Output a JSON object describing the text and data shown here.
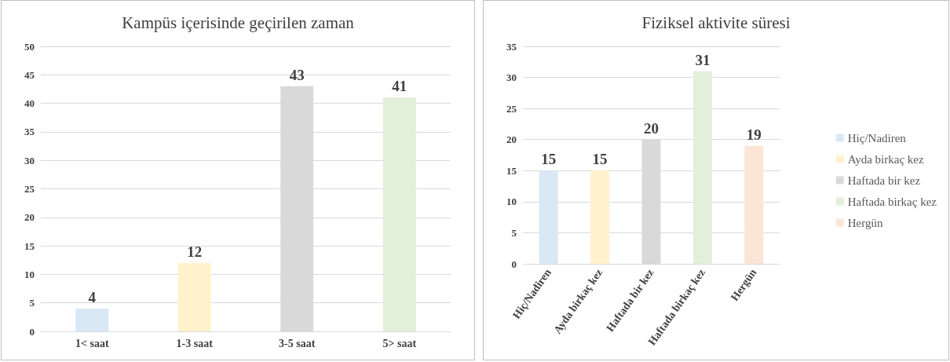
{
  "chart_data": [
    {
      "type": "bar",
      "title": "Kampüs içerisinde geçirilen zaman",
      "categories": [
        "1< saat",
        "1-3 saat",
        "3-5 saat",
        "5> saat"
      ],
      "values": [
        4,
        12,
        43,
        41
      ],
      "colors": [
        "#dae8f5",
        "#fff2cc",
        "#d9d9d9",
        "#e2efda"
      ],
      "ylim": [
        0,
        50
      ],
      "yticks": [
        0,
        5,
        10,
        15,
        20,
        25,
        30,
        35,
        40,
        45,
        50
      ],
      "grid": "y",
      "data_labels": true
    },
    {
      "type": "bar",
      "title": "Fiziksel aktivite süresi",
      "categories": [
        "Hiç/Nadiren",
        "Ayda birkaç kez",
        "Haftada bir kez",
        "Haftada birkaç kez",
        "Hergün"
      ],
      "series": [
        {
          "name": "Hiç/Nadiren",
          "color": "#dae8f5",
          "values": [
            15,
            null,
            null,
            null,
            null
          ]
        },
        {
          "name": "Ayda birkaç kez",
          "color": "#fff2cc",
          "values": [
            null,
            15,
            null,
            null,
            null
          ]
        },
        {
          "name": "Haftada bir kez",
          "color": "#d9d9d9",
          "values": [
            null,
            null,
            20,
            null,
            null
          ]
        },
        {
          "name": "Haftada birkaç kez",
          "color": "#e2efda",
          "values": [
            null,
            null,
            null,
            31,
            null
          ]
        },
        {
          "name": "Hergün",
          "color": "#fbe5d6",
          "values": [
            null,
            null,
            null,
            null,
            19
          ]
        }
      ],
      "ylim": [
        0,
        35
      ],
      "yticks": [
        0,
        5,
        10,
        15,
        20,
        25,
        30,
        35
      ],
      "grid": "y",
      "data_labels": true,
      "legend": "right"
    }
  ]
}
